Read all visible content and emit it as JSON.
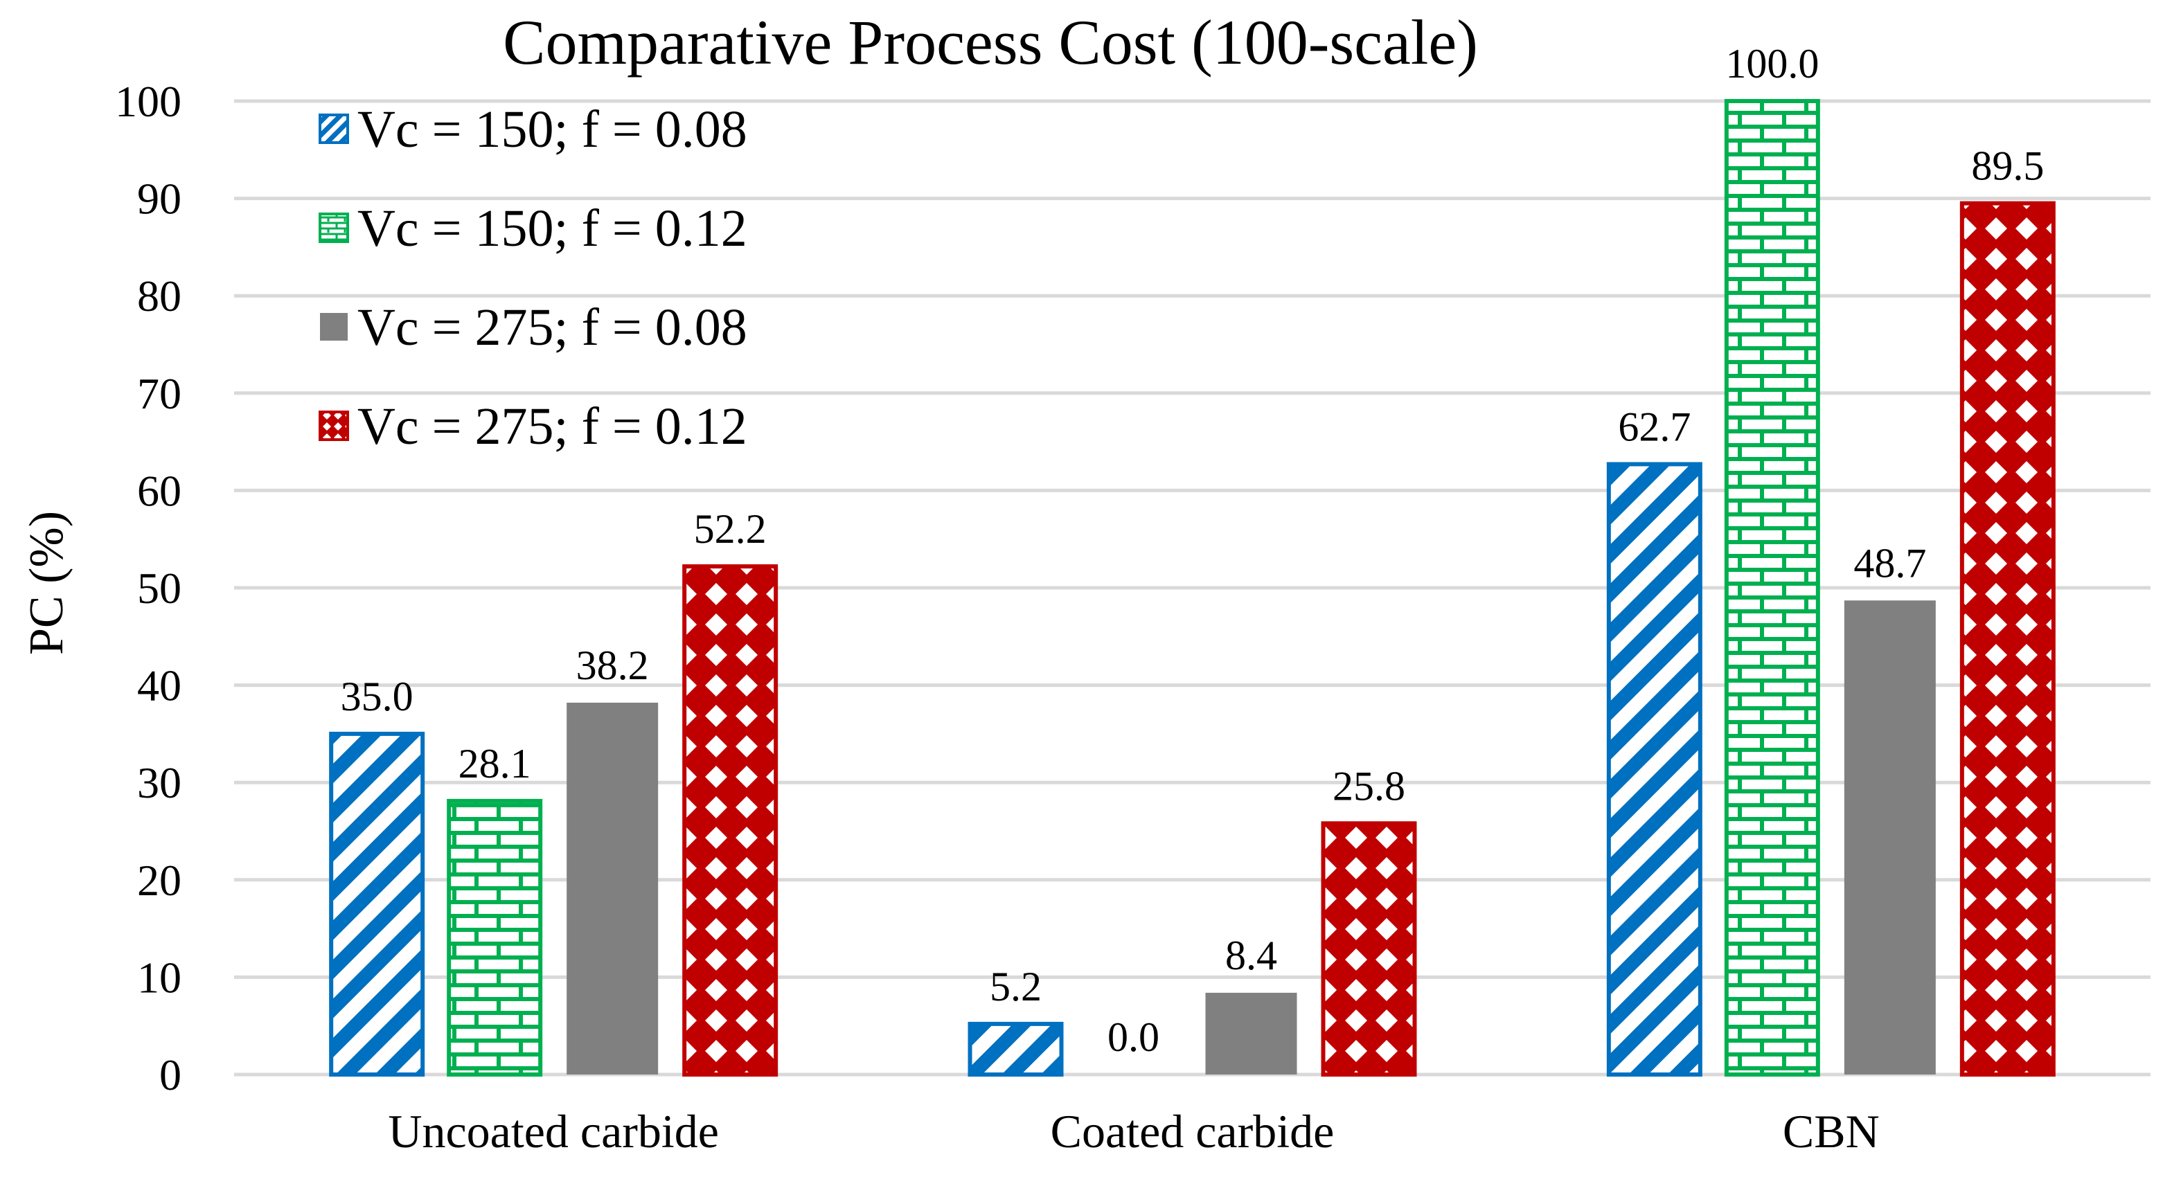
{
  "chart_data": {
    "type": "bar",
    "title": "Comparative Process Cost (100-scale)",
    "xlabel": "",
    "ylabel": "PC (%)",
    "ylim": [
      0,
      100
    ],
    "ytick_step": 10,
    "grid": true,
    "legend_position": "top-left",
    "categories": [
      "Uncoated carbide",
      "Coated carbide",
      "CBN"
    ],
    "series": [
      {
        "name": "Vc = 150; f = 0.08",
        "color": "#0070c0",
        "pattern": "diagonal-stripes",
        "values": [
          35.0,
          5.2,
          62.7
        ],
        "labels": [
          "35.0",
          "5.2",
          "62.7"
        ]
      },
      {
        "name": "Vc = 150; f = 0.12",
        "color": "#00b050",
        "pattern": "brick",
        "values": [
          28.1,
          0.0,
          100.0
        ],
        "labels": [
          "28.1",
          "0.0",
          "100.0"
        ]
      },
      {
        "name": "Vc = 275; f = 0.08",
        "color": "#808080",
        "pattern": "solid",
        "values": [
          38.2,
          8.4,
          48.7
        ],
        "labels": [
          "38.2",
          "8.4",
          "48.7"
        ]
      },
      {
        "name": "Vc = 275; f = 0.12",
        "color": "#c00000",
        "pattern": "diamond-grid",
        "values": [
          52.2,
          25.8,
          89.5
        ],
        "labels": [
          "52.2",
          "25.8",
          "89.5"
        ]
      }
    ]
  }
}
